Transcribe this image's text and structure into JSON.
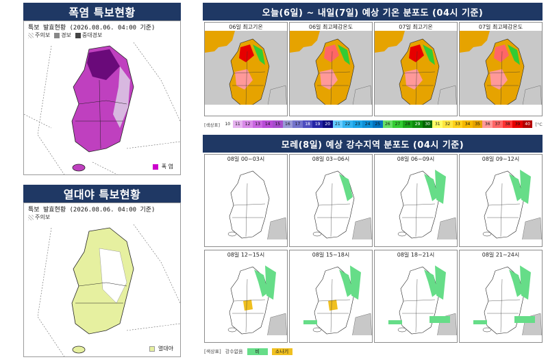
{
  "heat_wave": {
    "title": "폭염 특보현황",
    "issued": "특보 발효현황 (2026.08.06. 04:00 기준)",
    "legend": [
      {
        "label": "주의보",
        "color": "#d8b8e0",
        "pattern": "hatch"
      },
      {
        "label": "경보",
        "color": "#bf40bf"
      },
      {
        "label": "중대경보",
        "color": "#6a0a7a"
      }
    ],
    "corner_label": "폭 염",
    "corner_color": "#cc00cc"
  },
  "tropical_night": {
    "title": "열대야 특보현황",
    "issued": "특보 발효현황 (2026.08.06. 04:00 기준)",
    "legend": [
      {
        "label": "주의보",
        "color": "#dddddd",
        "pattern": "hatch"
      }
    ],
    "corner_label": "열대야",
    "corner_color": "#e6f0a0"
  },
  "temp_forecast": {
    "title": "오늘(6일) ~ 내일(7일) 예상 기온 분포도 (04시 기준)",
    "maps": [
      {
        "caption": "06일 최고기온"
      },
      {
        "caption": "06일 최고체감온도"
      },
      {
        "caption": "07일 최고기온"
      },
      {
        "caption": "07일 최고체감온도"
      }
    ],
    "scale_label": "[색상표]",
    "scale_unit": "[°C]",
    "scale": [
      {
        "v": "10",
        "c": "#ffffff"
      },
      {
        "v": "11",
        "c": "#e6b3f0"
      },
      {
        "v": "12",
        "c": "#d98ae8"
      },
      {
        "v": "13",
        "c": "#c966e0"
      },
      {
        "v": "14",
        "c": "#b84dd6"
      },
      {
        "v": "15",
        "c": "#a64dcc"
      },
      {
        "v": "16",
        "c": "#9999d6"
      },
      {
        "v": "17",
        "c": "#7373cc"
      },
      {
        "v": "18",
        "c": "#4d4dbf"
      },
      {
        "v": "19",
        "c": "#2626a6"
      },
      {
        "v": "20",
        "c": "#0d0d80"
      },
      {
        "v": "21",
        "c": "#66ccff"
      },
      {
        "v": "22",
        "c": "#33b3f0"
      },
      {
        "v": "23",
        "c": "#1aa3e6"
      },
      {
        "v": "24",
        "c": "#0d8fd6"
      },
      {
        "v": "25",
        "c": "#0073bf"
      },
      {
        "v": "26",
        "c": "#66e066"
      },
      {
        "v": "27",
        "c": "#33cc33"
      },
      {
        "v": "28",
        "c": "#1aa61a"
      },
      {
        "v": "29",
        "c": "#0d8c0d"
      },
      {
        "v": "30",
        "c": "#006600"
      },
      {
        "v": "31",
        "c": "#ffff66"
      },
      {
        "v": "32",
        "c": "#ffe640"
      },
      {
        "v": "33",
        "c": "#ffd11a"
      },
      {
        "v": "34",
        "c": "#f5b800"
      },
      {
        "v": "35",
        "c": "#e6a300"
      },
      {
        "v": "36",
        "c": "#ff9999"
      },
      {
        "v": "37",
        "c": "#ff6666"
      },
      {
        "v": "38",
        "c": "#ff3333"
      },
      {
        "v": "39",
        "c": "#e60000"
      },
      {
        "v": "40",
        "c": "#b30000"
      }
    ]
  },
  "rain_forecast": {
    "title": "모레(8일) 예상 강수지역 분포도 (04시 기준)",
    "maps": [
      {
        "caption": "08일 00~03시"
      },
      {
        "caption": "08일 03~06시"
      },
      {
        "caption": "08일 06~09시"
      },
      {
        "caption": "08일 09~12시"
      },
      {
        "caption": "08일 12~15시"
      },
      {
        "caption": "08일 15~18시"
      },
      {
        "caption": "08일 18~21시"
      },
      {
        "caption": "08일 21~24시"
      }
    ],
    "legend_label": "[색상표]",
    "legend_title": "강수없음",
    "legend_items": [
      {
        "label": "비",
        "color": "#66dd88"
      },
      {
        "label": "소나기",
        "color": "#f0c020"
      }
    ]
  }
}
